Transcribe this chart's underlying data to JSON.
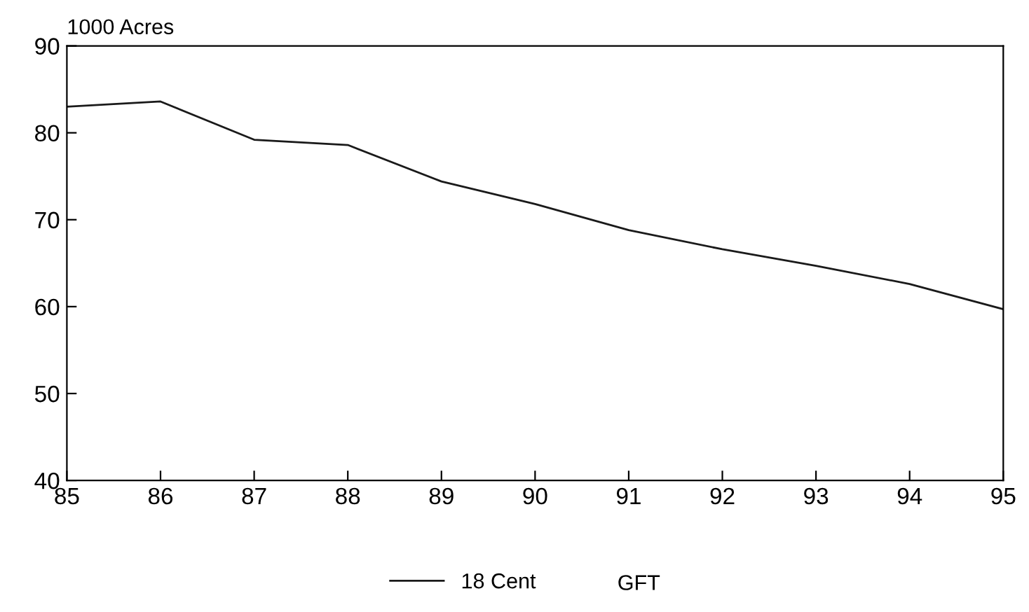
{
  "chart_data": {
    "type": "line",
    "ylabel": "1000 Acres",
    "x": [
      85,
      86,
      87,
      88,
      89,
      90,
      91,
      92,
      93,
      94,
      95
    ],
    "series": [
      {
        "name": "18 Cent",
        "color": "#1a1a1a",
        "values": [
          83.0,
          83.6,
          79.2,
          78.6,
          74.4,
          71.8,
          68.8,
          66.6,
          64.7,
          62.6,
          59.7
        ]
      }
    ],
    "xlim": [
      85,
      95
    ],
    "xticks": [
      85,
      86,
      87,
      88,
      89,
      90,
      91,
      92,
      93,
      94,
      95
    ],
    "ylim": [
      40,
      90
    ],
    "yticks": [
      40,
      50,
      60,
      70,
      80,
      90
    ],
    "grid": false,
    "legend": "bottom",
    "marker": "none",
    "line_style": "solid",
    "annotations": [
      "GFT"
    ]
  }
}
